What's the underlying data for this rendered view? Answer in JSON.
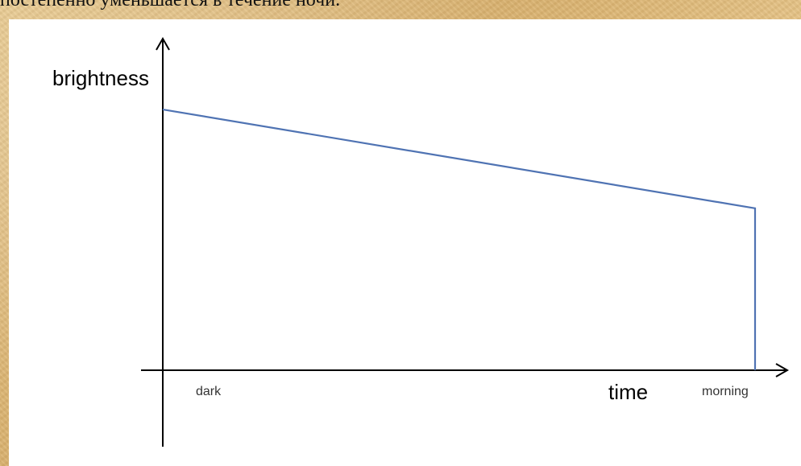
{
  "page": {
    "cut_off_caption": "постепенно уменьшается в течение ночи."
  },
  "chart_data": {
    "type": "line",
    "xlabel": "time",
    "ylabel": "brightness",
    "x_start_label": "dark",
    "x_end_label": "morning",
    "x": [
      0,
      1
    ],
    "series": [
      {
        "values": [
          0.95,
          0.59
        ]
      }
    ],
    "drop_line_at_end": true,
    "xlim": [
      0,
      1.06
    ],
    "ylim": [
      -0.3,
      1.1
    ],
    "line_color": "#4f73b3",
    "axis_color": "#000000",
    "grid": false,
    "legend": "none"
  }
}
